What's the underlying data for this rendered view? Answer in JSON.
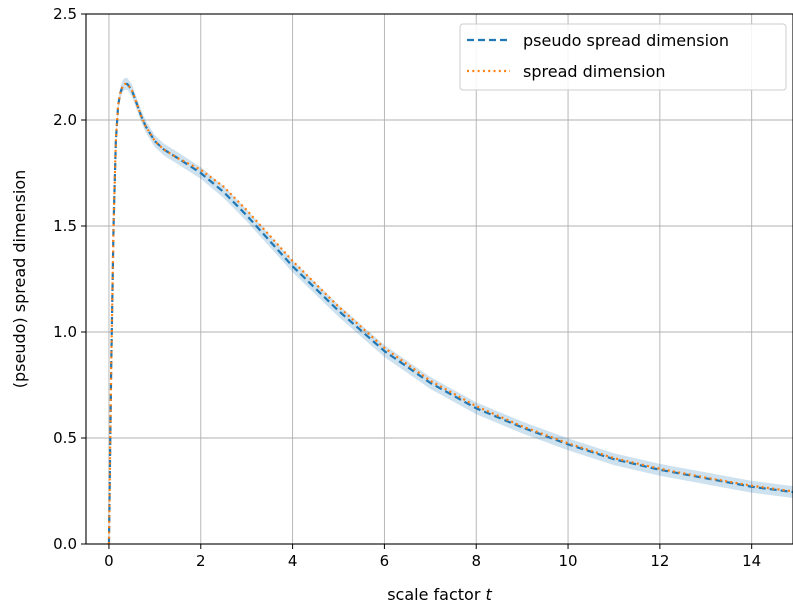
{
  "chart_data": {
    "type": "line",
    "xlabel": "scale factor",
    "xlabel_var": "t",
    "ylabel": "(pseudo) spread dimension",
    "xlim": [
      -0.5,
      14.9
    ],
    "ylim": [
      0.0,
      2.5
    ],
    "xticks": [
      0,
      2,
      4,
      6,
      8,
      10,
      12,
      14
    ],
    "xtick_labels": [
      "0",
      "2",
      "4",
      "6",
      "8",
      "10",
      "12",
      "14"
    ],
    "yticks": [
      0.0,
      0.5,
      1.0,
      1.5,
      2.0,
      2.5
    ],
    "ytick_labels": [
      "0.0",
      "0.5",
      "1.0",
      "1.5",
      "2.0",
      "2.5"
    ],
    "grid": true,
    "legend_position": "top-right",
    "band_halfwidth": 0.028,
    "series": [
      {
        "name": "pseudo spread dimension",
        "color": "#1f77b4",
        "style": "dashed",
        "x": [
          0,
          0.05,
          0.1,
          0.15,
          0.2,
          0.25,
          0.3,
          0.35,
          0.4,
          0.5,
          0.6,
          0.7,
          0.8,
          1.0,
          1.2,
          1.5,
          2.0,
          2.5,
          3.0,
          3.5,
          4.0,
          5.0,
          6.0,
          7.0,
          8.0,
          9.0,
          10.0,
          11.0,
          12.0,
          13.0,
          14.0,
          14.9
        ],
        "y": [
          0.0,
          0.85,
          1.5,
          1.9,
          2.07,
          2.13,
          2.16,
          2.17,
          2.17,
          2.14,
          2.08,
          2.02,
          1.97,
          1.9,
          1.86,
          1.82,
          1.75,
          1.66,
          1.55,
          1.43,
          1.31,
          1.1,
          0.91,
          0.76,
          0.64,
          0.55,
          0.47,
          0.4,
          0.35,
          0.31,
          0.27,
          0.245
        ]
      },
      {
        "name": "spread dimension",
        "color": "#ff7f0e",
        "style": "dotted",
        "x": [
          0,
          0.05,
          0.1,
          0.15,
          0.2,
          0.25,
          0.3,
          0.35,
          0.4,
          0.5,
          0.6,
          0.7,
          0.8,
          1.0,
          1.2,
          1.5,
          2.0,
          2.5,
          3.0,
          3.5,
          4.0,
          5.0,
          6.0,
          7.0,
          8.0,
          9.0,
          10.0,
          11.0,
          12.0,
          13.0,
          14.0,
          14.9
        ],
        "y": [
          0.0,
          0.85,
          1.5,
          1.9,
          2.07,
          2.13,
          2.16,
          2.17,
          2.17,
          2.14,
          2.08,
          2.02,
          1.97,
          1.9,
          1.86,
          1.82,
          1.765,
          1.685,
          1.575,
          1.455,
          1.335,
          1.12,
          0.925,
          0.77,
          0.65,
          0.555,
          0.475,
          0.405,
          0.355,
          0.313,
          0.275,
          0.248
        ]
      }
    ]
  }
}
